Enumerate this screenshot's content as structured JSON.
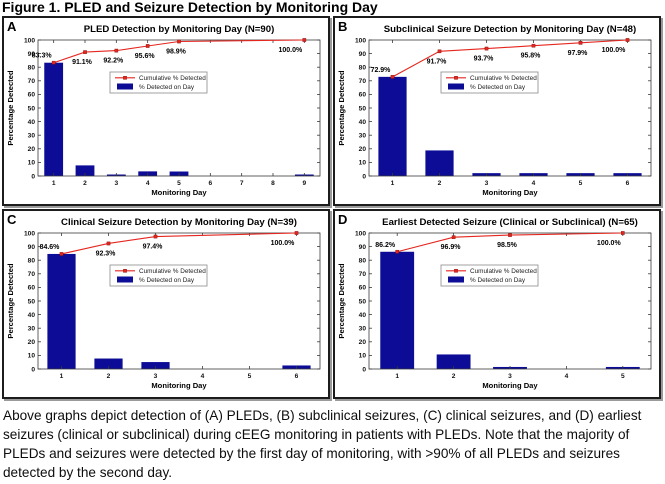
{
  "figure_title": "Figure 1. PLED and Seizure Detection by Monitoring Day",
  "caption": "Above graphs depict detection of (A) PLEDs, (B) subclinical seizures, (C) clinical seizures, and (D) earliest seizures (clinical or subclinical) during cEEG monitoring in patients with PLEDs. Note that the majority of PLEDs and seizures were detected by the first day of monitoring, with >90% of all PLEDs and seizures detected by the second day.",
  "legend": {
    "line_label": "Cumulative % Detected",
    "bar_label": "% Detected on Day"
  },
  "colors": {
    "bar": "#0c0c96",
    "line": "#e5261f",
    "marker_edge": "#7d120e",
    "axis": "#3a3a3a",
    "legend_border": "#8a8a8a"
  },
  "chart_data": [
    {
      "panel": "A",
      "type": "bar",
      "title": "PLED Detection by Monitoring Day (N=90)",
      "xlabel": "Monitoring Day",
      "ylabel": "Percentage Detected",
      "ylim": [
        0,
        100
      ],
      "ytick_step": 10,
      "grid": false,
      "legend_position": "upper-center",
      "categories": [
        1,
        2,
        3,
        4,
        5,
        6,
        7,
        8,
        9
      ],
      "bar_values": [
        83.3,
        7.8,
        1.1,
        3.4,
        3.3,
        0,
        0,
        0,
        1.1
      ],
      "cumulative": [
        {
          "day": 1,
          "pct": 83.3,
          "label": "83.3%"
        },
        {
          "day": 2,
          "pct": 91.1,
          "label": "91.1%"
        },
        {
          "day": 3,
          "pct": 92.2,
          "label": "92.2%"
        },
        {
          "day": 4,
          "pct": 95.6,
          "label": "95.6%"
        },
        {
          "day": 5,
          "pct": 98.9,
          "label": "98.9%"
        },
        {
          "day": 9,
          "pct": 100.0,
          "label": "100.0%"
        }
      ]
    },
    {
      "panel": "B",
      "type": "bar",
      "title": "Subclinical Seizure Detection by Monitoring Day (N=48)",
      "xlabel": "Monitoring Day",
      "ylabel": "Percentage Detected",
      "ylim": [
        0,
        100
      ],
      "ytick_step": 10,
      "grid": false,
      "legend_position": "upper-center",
      "categories": [
        1,
        2,
        3,
        4,
        5,
        6
      ],
      "bar_values": [
        72.9,
        18.8,
        2.1,
        2.1,
        2.1,
        2.1
      ],
      "cumulative": [
        {
          "day": 1,
          "pct": 72.9,
          "label": "72.9%"
        },
        {
          "day": 2,
          "pct": 91.7,
          "label": "91.7%"
        },
        {
          "day": 3,
          "pct": 93.7,
          "label": "93.7%"
        },
        {
          "day": 4,
          "pct": 95.8,
          "label": "95.8%"
        },
        {
          "day": 5,
          "pct": 97.9,
          "label": "97.9%"
        },
        {
          "day": 6,
          "pct": 100.0,
          "label": "100.0%"
        }
      ]
    },
    {
      "panel": "C",
      "type": "bar",
      "title": "Clinical Seizure Detection by Monitoring Day (N=39)",
      "xlabel": "Monitoring Day",
      "ylabel": "Percentage Detected",
      "ylim": [
        0,
        100
      ],
      "ytick_step": 10,
      "grid": false,
      "legend_position": "upper-center",
      "categories": [
        1,
        2,
        3,
        4,
        5,
        6
      ],
      "bar_values": [
        84.6,
        7.7,
        5.1,
        0,
        0,
        2.6
      ],
      "cumulative": [
        {
          "day": 1,
          "pct": 84.6,
          "label": "84.6%"
        },
        {
          "day": 2,
          "pct": 92.3,
          "label": "92.3%"
        },
        {
          "day": 3,
          "pct": 97.4,
          "label": "97.4%"
        },
        {
          "day": 6,
          "pct": 100.0,
          "label": "100.0%"
        }
      ]
    },
    {
      "panel": "D",
      "type": "bar",
      "title": "Earliest Detected Seizure (Clinical or Subclinical) (N=65)",
      "xlabel": "Monitoring Day",
      "ylabel": "Percentage Detected",
      "ylim": [
        0,
        100
      ],
      "ytick_step": 10,
      "grid": false,
      "legend_position": "upper-center",
      "categories": [
        1,
        2,
        3,
        4,
        5
      ],
      "bar_values": [
        86.2,
        10.7,
        1.5,
        0,
        1.5
      ],
      "cumulative": [
        {
          "day": 1,
          "pct": 86.2,
          "label": "86.2%"
        },
        {
          "day": 2,
          "pct": 96.9,
          "label": "96.9%"
        },
        {
          "day": 3,
          "pct": 98.5,
          "label": "98.5%"
        },
        {
          "day": 5,
          "pct": 100.0,
          "label": "100.0%"
        }
      ]
    }
  ]
}
